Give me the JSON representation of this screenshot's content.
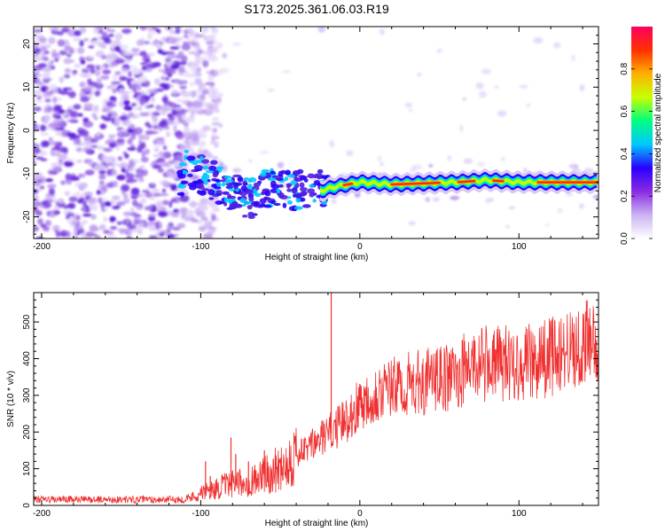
{
  "title": "S173.2025.361.06.03.R19",
  "chart_data": [
    {
      "type": "heatmap",
      "name": "spectrogram",
      "xlabel": "Height of straight line (km)",
      "ylabel": "Frequency (Hz)",
      "xlim": [
        -205,
        150
      ],
      "ylim": [
        -25,
        24
      ],
      "xticks": [
        -200,
        -100,
        0,
        100
      ],
      "yticks": [
        -20,
        -10,
        0,
        10,
        20
      ],
      "colorbar": {
        "label": "Normalized spectral amplitude",
        "range": [
          0,
          1
        ],
        "ticks": [
          "0.0",
          "0.2",
          "0.4",
          "0.6",
          "0.8"
        ],
        "tick_values": [
          0,
          0.2,
          0.4,
          0.6,
          0.8
        ],
        "colors": [
          "#ffffff",
          "#cbb3f2",
          "#8a2be2",
          "#2a00ff",
          "#00c8ff",
          "#00ff80",
          "#c8ff00",
          "#ffb000",
          "#ff3000",
          "#ff0060"
        ]
      },
      "ridge": [
        {
          "x": -110,
          "f": -8
        },
        {
          "x": -90,
          "f": -12
        },
        {
          "x": -70,
          "f": -16
        },
        {
          "x": -55,
          "f": -13
        },
        {
          "x": -40,
          "f": -14
        },
        {
          "x": -25,
          "f": -14
        },
        {
          "x": -15,
          "f": -13
        },
        {
          "x": 0,
          "f": -12
        },
        {
          "x": 20,
          "f": -12.5
        },
        {
          "x": 60,
          "f": -12
        },
        {
          "x": 80,
          "f": -11.5
        },
        {
          "x": 100,
          "f": -12
        },
        {
          "x": 150,
          "f": -12
        }
      ]
    },
    {
      "type": "line",
      "name": "snr",
      "xlabel": "Height of straight line (km)",
      "ylabel": "SNR (10 * v/v)",
      "xlim": [
        -205,
        150
      ],
      "ylim": [
        0,
        580
      ],
      "xticks": [
        -200,
        -100,
        0,
        100
      ],
      "yticks": [
        0,
        100,
        200,
        300,
        400,
        500
      ],
      "color": "#f03030",
      "trend": [
        {
          "x": -205,
          "y": 15
        },
        {
          "x": -110,
          "y": 15
        },
        {
          "x": -100,
          "y": 30
        },
        {
          "x": -85,
          "y": 50
        },
        {
          "x": -70,
          "y": 60
        },
        {
          "x": -55,
          "y": 85
        },
        {
          "x": -40,
          "y": 130
        },
        {
          "x": -25,
          "y": 175
        },
        {
          "x": -10,
          "y": 220
        },
        {
          "x": 0,
          "y": 270
        },
        {
          "x": 10,
          "y": 300
        },
        {
          "x": 30,
          "y": 320
        },
        {
          "x": 60,
          "y": 340
        },
        {
          "x": 70,
          "y": 375
        },
        {
          "x": 110,
          "y": 380
        },
        {
          "x": 150,
          "y": 440
        }
      ],
      "spikes": [
        {
          "x": -18,
          "y": 580
        },
        {
          "x": -97,
          "y": 120
        },
        {
          "x": -94,
          "y": 80
        },
        {
          "x": -81,
          "y": 185
        },
        {
          "x": -78,
          "y": 140
        },
        {
          "x": -70,
          "y": 120
        },
        {
          "x": -66,
          "y": 110
        },
        {
          "x": -60,
          "y": 150
        }
      ]
    }
  ]
}
